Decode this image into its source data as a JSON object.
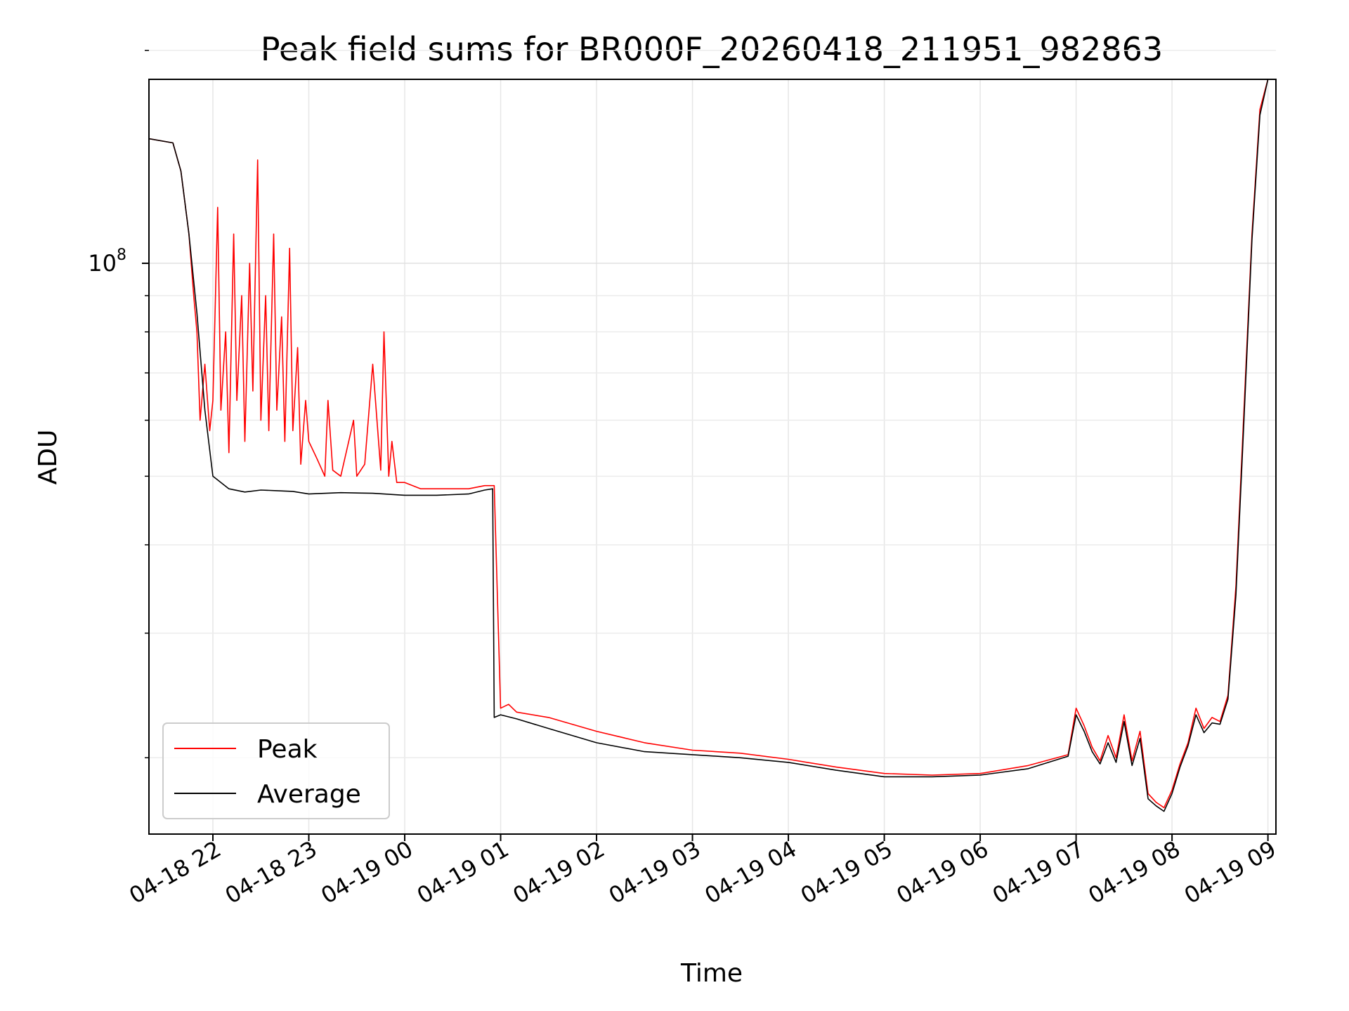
{
  "chart_data": {
    "type": "line",
    "title": "Peak field sums for BR000F_20260418_211951_982863",
    "xlabel": "Time",
    "ylabel": "ADU",
    "yscale": "log",
    "grid": true,
    "legend_position": "lower-left",
    "xlim": [
      "2026-04-18 21:20",
      "2026-04-19 09:05"
    ],
    "ylim": [
      15600000,
      182000000
    ],
    "x_ticks": [
      {
        "value": "2026-04-18 22:00",
        "label": "04-18 22"
      },
      {
        "value": "2026-04-18 23:00",
        "label": "04-18 23"
      },
      {
        "value": "2026-04-19 00:00",
        "label": "04-19 00"
      },
      {
        "value": "2026-04-19 01:00",
        "label": "04-19 01"
      },
      {
        "value": "2026-04-19 02:00",
        "label": "04-19 02"
      },
      {
        "value": "2026-04-19 03:00",
        "label": "04-19 03"
      },
      {
        "value": "2026-04-19 04:00",
        "label": "04-19 04"
      },
      {
        "value": "2026-04-19 05:00",
        "label": "04-19 05"
      },
      {
        "value": "2026-04-19 06:00",
        "label": "04-19 06"
      },
      {
        "value": "2026-04-19 07:00",
        "label": "04-19 07"
      },
      {
        "value": "2026-04-19 08:00",
        "label": "04-19 08"
      },
      {
        "value": "2026-04-19 09:00",
        "label": "04-19 09"
      }
    ],
    "y_major_ticks": [
      {
        "value": 100000000,
        "base": "10",
        "exp": "8"
      }
    ],
    "y_minor_ticks": [
      20000000,
      30000000,
      40000000,
      50000000,
      60000000,
      70000000,
      80000000,
      90000000,
      200000000
    ],
    "series": [
      {
        "name": "Peak",
        "color": "#ff0000",
        "x": [
          "2026-04-18 21:20",
          "2026-04-18 21:35",
          "2026-04-18 21:40",
          "2026-04-18 21:45",
          "2026-04-18 21:48",
          "2026-04-18 21:50",
          "2026-04-18 21:52",
          "2026-04-18 21:55",
          "2026-04-18 21:58",
          "2026-04-18 22:00",
          "2026-04-18 22:03",
          "2026-04-18 22:05",
          "2026-04-18 22:08",
          "2026-04-18 22:10",
          "2026-04-18 22:13",
          "2026-04-18 22:15",
          "2026-04-18 22:18",
          "2026-04-18 22:20",
          "2026-04-18 22:23",
          "2026-04-18 22:25",
          "2026-04-18 22:28",
          "2026-04-18 22:30",
          "2026-04-18 22:33",
          "2026-04-18 22:35",
          "2026-04-18 22:38",
          "2026-04-18 22:40",
          "2026-04-18 22:43",
          "2026-04-18 22:45",
          "2026-04-18 22:48",
          "2026-04-18 22:50",
          "2026-04-18 22:53",
          "2026-04-18 22:55",
          "2026-04-18 22:58",
          "2026-04-18 23:00",
          "2026-04-18 23:05",
          "2026-04-18 23:10",
          "2026-04-18 23:12",
          "2026-04-18 23:15",
          "2026-04-18 23:20",
          "2026-04-18 23:28",
          "2026-04-18 23:30",
          "2026-04-18 23:35",
          "2026-04-18 23:40",
          "2026-04-18 23:45",
          "2026-04-18 23:47",
          "2026-04-18 23:50",
          "2026-04-18 23:52",
          "2026-04-18 23:55",
          "2026-04-19 00:00",
          "2026-04-19 00:10",
          "2026-04-19 00:20",
          "2026-04-19 00:30",
          "2026-04-19 00:40",
          "2026-04-19 00:50",
          "2026-04-19 00:55",
          "2026-04-19 00:56",
          "2026-04-19 01:00",
          "2026-04-19 01:05",
          "2026-04-19 01:10",
          "2026-04-19 01:30",
          "2026-04-19 02:00",
          "2026-04-19 02:30",
          "2026-04-19 03:00",
          "2026-04-19 03:30",
          "2026-04-19 04:00",
          "2026-04-19 04:30",
          "2026-04-19 05:00",
          "2026-04-19 05:30",
          "2026-04-19 06:00",
          "2026-04-19 06:30",
          "2026-04-19 06:55",
          "2026-04-19 07:00",
          "2026-04-19 07:05",
          "2026-04-19 07:10",
          "2026-04-19 07:15",
          "2026-04-19 07:20",
          "2026-04-19 07:25",
          "2026-04-19 07:30",
          "2026-04-19 07:35",
          "2026-04-19 07:40",
          "2026-04-19 07:45",
          "2026-04-19 07:50",
          "2026-04-19 07:55",
          "2026-04-19 08:00",
          "2026-04-19 08:05",
          "2026-04-19 08:10",
          "2026-04-19 08:15",
          "2026-04-19 08:20",
          "2026-04-19 08:25",
          "2026-04-19 08:30",
          "2026-04-19 08:35",
          "2026-04-19 08:40",
          "2026-04-19 08:45",
          "2026-04-19 08:50",
          "2026-04-19 08:55",
          "2026-04-19 09:00"
        ],
        "y": [
          150000000,
          148000000,
          135000000,
          110000000,
          90000000,
          80000000,
          60000000,
          72000000,
          58000000,
          64000000,
          120000000,
          62000000,
          80000000,
          54000000,
          110000000,
          64000000,
          90000000,
          56000000,
          100000000,
          66000000,
          140000000,
          60000000,
          90000000,
          58000000,
          110000000,
          62000000,
          84000000,
          56000000,
          105000000,
          58000000,
          76000000,
          52000000,
          64000000,
          56000000,
          53000000,
          50000000,
          64000000,
          51000000,
          50000000,
          60000000,
          50000000,
          52000000,
          72000000,
          51000000,
          80000000,
          50000000,
          56000000,
          49000000,
          49000000,
          48000000,
          48000000,
          48000000,
          48000000,
          48500000,
          48500000,
          48500000,
          23500000,
          23800000,
          23200000,
          22800000,
          21800000,
          21000000,
          20500000,
          20300000,
          19900000,
          19400000,
          19000000,
          18900000,
          19000000,
          19500000,
          20200000,
          23500000,
          22200000,
          20700000,
          19800000,
          21500000,
          20000000,
          23000000,
          19800000,
          21800000,
          17800000,
          17300000,
          17000000,
          18000000,
          19600000,
          21000000,
          23500000,
          22000000,
          22800000,
          22500000,
          24500000,
          35000000,
          62000000,
          110000000,
          165000000,
          182000000
        ]
      },
      {
        "name": "Average",
        "color": "#000000",
        "x": [
          "2026-04-18 21:20",
          "2026-04-18 21:35",
          "2026-04-18 21:40",
          "2026-04-18 21:45",
          "2026-04-18 21:50",
          "2026-04-18 21:55",
          "2026-04-18 22:00",
          "2026-04-18 22:10",
          "2026-04-18 22:20",
          "2026-04-18 22:30",
          "2026-04-18 22:40",
          "2026-04-18 22:50",
          "2026-04-18 23:00",
          "2026-04-18 23:20",
          "2026-04-18 23:40",
          "2026-04-19 00:00",
          "2026-04-19 00:20",
          "2026-04-19 00:40",
          "2026-04-19 00:50",
          "2026-04-19 00:55",
          "2026-04-19 00:56",
          "2026-04-19 01:00",
          "2026-04-19 01:10",
          "2026-04-19 01:30",
          "2026-04-19 02:00",
          "2026-04-19 02:30",
          "2026-04-19 03:00",
          "2026-04-19 03:30",
          "2026-04-19 04:00",
          "2026-04-19 04:30",
          "2026-04-19 05:00",
          "2026-04-19 05:30",
          "2026-04-19 06:00",
          "2026-04-19 06:30",
          "2026-04-19 06:55",
          "2026-04-19 07:00",
          "2026-04-19 07:05",
          "2026-04-19 07:10",
          "2026-04-19 07:15",
          "2026-04-19 07:20",
          "2026-04-19 07:25",
          "2026-04-19 07:30",
          "2026-04-19 07:35",
          "2026-04-19 07:40",
          "2026-04-19 07:45",
          "2026-04-19 07:50",
          "2026-04-19 07:55",
          "2026-04-19 08:00",
          "2026-04-19 08:05",
          "2026-04-19 08:10",
          "2026-04-19 08:15",
          "2026-04-19 08:20",
          "2026-04-19 08:25",
          "2026-04-19 08:30",
          "2026-04-19 08:35",
          "2026-04-19 08:40",
          "2026-04-19 08:45",
          "2026-04-19 08:50",
          "2026-04-19 08:55",
          "2026-04-19 09:00"
        ],
        "y": [
          150000000,
          148000000,
          135000000,
          110000000,
          85000000,
          62000000,
          50000000,
          48000000,
          47500000,
          47800000,
          47700000,
          47600000,
          47200000,
          47400000,
          47300000,
          47000000,
          47000000,
          47200000,
          47800000,
          48000000,
          22800000,
          23000000,
          22700000,
          22000000,
          21000000,
          20400000,
          20200000,
          20000000,
          19700000,
          19200000,
          18800000,
          18800000,
          18900000,
          19300000,
          20100000,
          23000000,
          21800000,
          20400000,
          19600000,
          21000000,
          19700000,
          22500000,
          19500000,
          21300000,
          17500000,
          17100000,
          16800000,
          17800000,
          19400000,
          20800000,
          23000000,
          21700000,
          22400000,
          22300000,
          24200000,
          34000000,
          60000000,
          108000000,
          162000000,
          182000000
        ]
      }
    ]
  }
}
